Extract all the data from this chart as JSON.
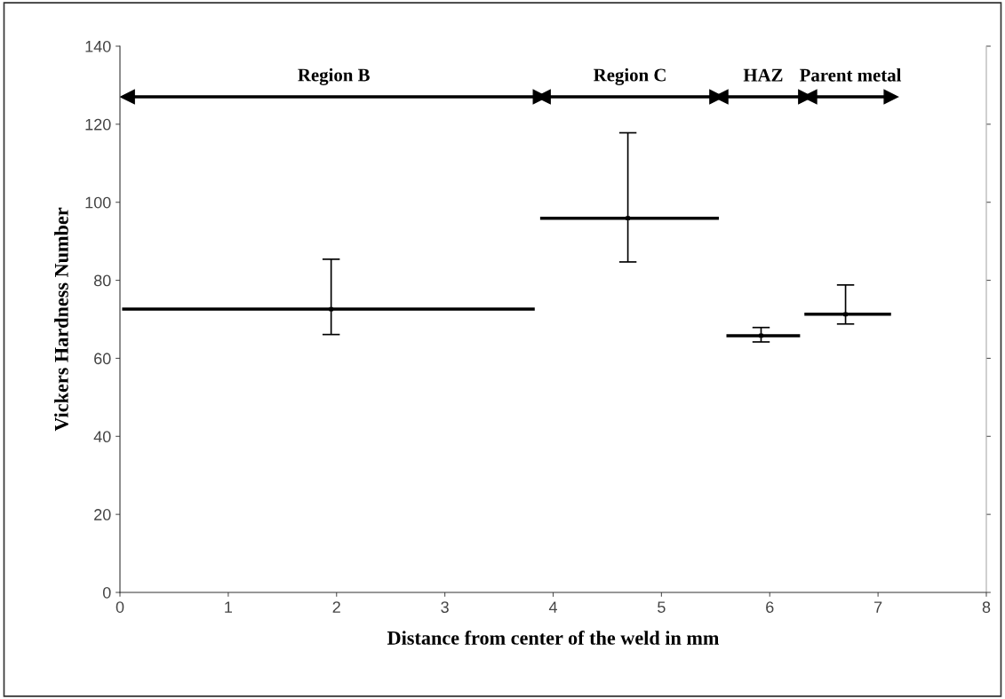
{
  "chart_data": {
    "type": "line",
    "xlabel": "Distance from center of the weld in mm",
    "ylabel": "Vickers Hardness Number",
    "xlim": [
      0,
      8
    ],
    "xticks": [
      0,
      1,
      2,
      3,
      4,
      5,
      6,
      7,
      8
    ],
    "ylim": [
      0,
      140
    ],
    "yticks": [
      0,
      20,
      40,
      60,
      80,
      100,
      120,
      140
    ],
    "grid": false,
    "legend": false,
    "marker": "none",
    "line_style": "solid",
    "series": [
      {
        "color": "#000000",
        "x": [
          0.02,
          3.83
        ],
        "values": [
          72.6,
          72.6
        ]
      },
      {
        "color": "#000000",
        "x": [
          3.88,
          5.53
        ],
        "values": [
          95.9,
          95.9
        ]
      },
      {
        "color": "#000000",
        "x": [
          5.6,
          6.28
        ],
        "values": [
          65.8,
          65.8
        ]
      },
      {
        "color": "#000000",
        "x": [
          6.32,
          7.12
        ],
        "values": [
          71.3,
          71.3
        ]
      },
      {
        "type": "scatter",
        "marker": "square",
        "color": "#000000",
        "x": [
          1.95,
          4.69,
          5.92,
          6.7
        ],
        "values": [
          72.6,
          95.9,
          65.8,
          71.3
        ],
        "errors": [
          [
            66.1,
            85.4
          ],
          [
            84.7,
            117.8
          ],
          [
            64.2,
            67.9
          ],
          [
            68.8,
            78.8
          ]
        ]
      },
      {
        "name": "Region B",
        "marker": "triangle",
        "color": "#000000",
        "x": [
          0.07,
          3.88
        ],
        "values": [
          127,
          127
        ]
      },
      {
        "name": "Region C",
        "marker": "triangle",
        "color": "#000000",
        "x": [
          3.91,
          5.51
        ],
        "values": [
          127,
          127
        ]
      },
      {
        "name": "HAZ",
        "marker": "triangle",
        "color": "#000000",
        "x": [
          5.55,
          6.33
        ],
        "values": [
          127,
          127
        ]
      },
      {
        "name": "Parent metal",
        "marker": "triangle",
        "color": "#000000",
        "x": [
          6.37,
          7.12
        ],
        "values": [
          127,
          127
        ]
      }
    ]
  }
}
